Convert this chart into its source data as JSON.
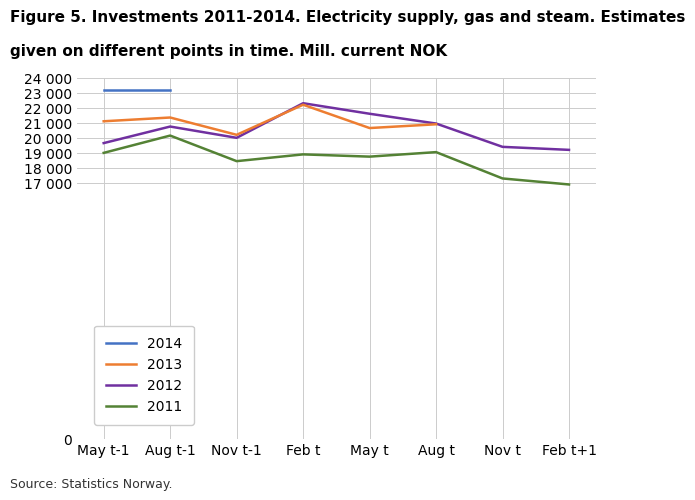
{
  "title_line1": "Figure 5. Investments 2011-2014. Electricity supply, gas and steam. Estimates",
  "title_line2": "given on different points in time. Mill. current NOK",
  "source": "Source: Statistics Norway.",
  "x_labels": [
    "May t-1",
    "Aug t-1",
    "Nov t-1",
    "Feb t",
    "May t",
    "Aug t",
    "Nov t",
    "Feb t+1"
  ],
  "series": {
    "2014": {
      "values": [
        23200,
        23200,
        null,
        null,
        null,
        null,
        null,
        null
      ],
      "color": "#4472C4",
      "zorder": 4
    },
    "2013": {
      "values": [
        21100,
        21350,
        20200,
        22200,
        20650,
        20900,
        null,
        null
      ],
      "color": "#ED7D31",
      "zorder": 3
    },
    "2012": {
      "values": [
        19650,
        20750,
        20000,
        22300,
        21600,
        20950,
        19400,
        19200
      ],
      "color": "#7030A0",
      "zorder": 2
    },
    "2011": {
      "values": [
        19000,
        20150,
        18450,
        18900,
        18750,
        19050,
        17300,
        16900
      ],
      "color": "#548235",
      "zorder": 1
    }
  },
  "ylim": [
    0,
    24000
  ],
  "yticks": [
    0,
    17000,
    18000,
    19000,
    20000,
    21000,
    22000,
    23000,
    24000
  ],
  "background_color": "#ffffff",
  "grid_color": "#cccccc",
  "legend_order": [
    "2014",
    "2013",
    "2012",
    "2011"
  ],
  "title_fontsize": 11,
  "tick_fontsize": 10,
  "legend_fontsize": 10,
  "linewidth": 1.8
}
